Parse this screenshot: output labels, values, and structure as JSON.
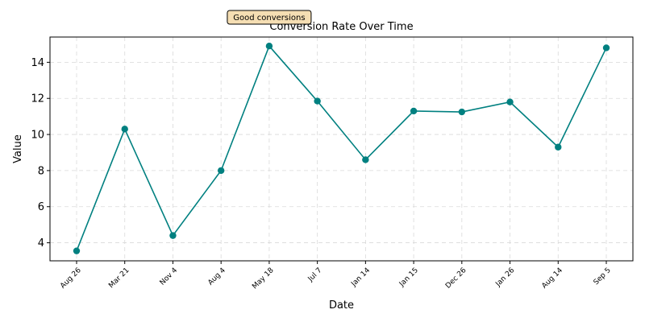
{
  "chart_data": {
    "type": "line",
    "title": "Conversion Rate Over Time",
    "xlabel": "Date",
    "ylabel": "Value",
    "categories": [
      "Aug 26",
      "Mar 21",
      "Nov 4",
      "Aug 4",
      "May 18",
      "Jul 7",
      "Jan 14",
      "Jan 15",
      "Dec 26",
      "Jan 26",
      "Aug 14",
      "Sep 5"
    ],
    "series": [
      {
        "values": [
          3.55,
          10.3,
          4.4,
          8.0,
          14.9,
          11.85,
          8.6,
          11.3,
          11.25,
          11.8,
          9.3,
          14.8
        ]
      }
    ],
    "ylim": [
      3.0,
      15.4
    ],
    "yticks": [
      4,
      6,
      8,
      10,
      12,
      14
    ],
    "grid": true,
    "color": "#008080",
    "annotation": {
      "text": "Good conversions",
      "x_index": 4,
      "background": "#f5deb3"
    }
  }
}
